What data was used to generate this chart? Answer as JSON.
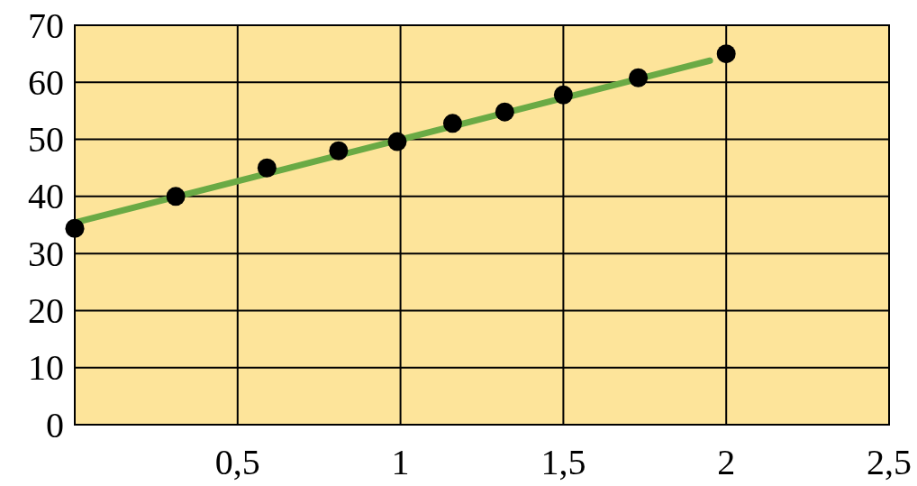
{
  "chart_data": {
    "type": "scatter",
    "xlim": [
      0,
      2.5
    ],
    "ylim": [
      0,
      70
    ],
    "xticks": [
      {
        "value": 0,
        "label": null
      },
      {
        "value": 0.5,
        "label": "0,5"
      },
      1,
      {
        "value": 1.5,
        "label": "1,5"
      },
      2,
      {
        "value": 2.5,
        "label": "2,5"
      }
    ],
    "yticks": [
      0,
      10,
      20,
      30,
      40,
      50,
      60,
      70
    ],
    "grid": true,
    "line_style": "solid",
    "series": [
      {
        "type": "line",
        "color": "#6aaa45",
        "x": [
          0,
          1.95
        ],
        "values": [
          35.4,
          63.8
        ]
      },
      {
        "marker": "circle",
        "color": "#000000",
        "x": [
          0,
          0.31,
          0.59,
          0.81,
          0.99,
          1.16,
          1.32,
          1.5,
          1.73,
          2.0
        ],
        "values": [
          34.4,
          40,
          45,
          48,
          49.6,
          52.8,
          54.8,
          57.8,
          60.8,
          65
        ]
      }
    ]
  }
}
